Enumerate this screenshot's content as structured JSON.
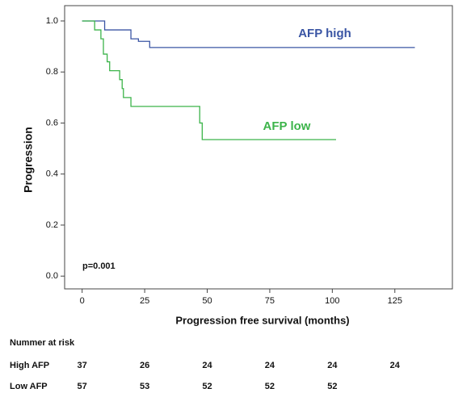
{
  "chart_data": {
    "type": "step",
    "y_label": "Progression",
    "x_label": "Progression free survival (months)",
    "annotation": "p=0.001",
    "xlim": [
      -7,
      148
    ],
    "ylim": [
      -0.05,
      1.06
    ],
    "xticks": [
      0,
      25,
      50,
      75,
      100,
      125
    ],
    "yticks": [
      {
        "value": 0,
        "label": "0.0"
      },
      {
        "value": 0.2,
        "label": "0.2"
      },
      {
        "value": 0.4,
        "label": "0.4"
      },
      {
        "value": 0.6,
        "label": "0.6"
      },
      {
        "value": 0.8,
        "label": "0.8"
      },
      {
        "value": 1,
        "label": "1.0"
      }
    ],
    "series": [
      {
        "name": "AFP high",
        "color": "#3a55a4",
        "x": [
          0,
          9,
          19.5,
          22.5,
          27,
          133
        ],
        "values": [
          1,
          0.965,
          0.93,
          0.92,
          0.896,
          0.896
        ]
      },
      {
        "name": "AFP low",
        "color": "#3cb44a",
        "x": [
          0,
          5,
          7.5,
          8.5,
          10,
          11,
          15,
          16,
          16.5,
          19.5,
          47,
          48,
          101.5
        ],
        "values": [
          1,
          0.965,
          0.93,
          0.87,
          0.84,
          0.805,
          0.77,
          0.735,
          0.7,
          0.665,
          0.6,
          0.535,
          0.535
        ]
      }
    ]
  },
  "risk_table": {
    "title": "Nummer at risk",
    "rows": [
      {
        "label": "High AFP",
        "values": [
          "37",
          "26",
          "24",
          "24",
          "24",
          "24"
        ]
      },
      {
        "label": "Low AFP",
        "values": [
          "57",
          "53",
          "52",
          "52",
          "52"
        ]
      }
    ]
  }
}
